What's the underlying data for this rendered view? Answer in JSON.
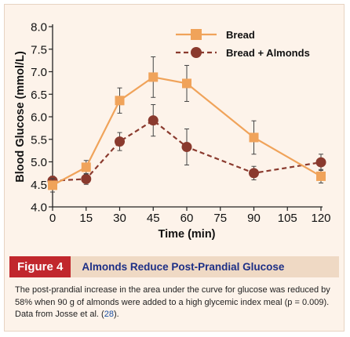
{
  "chart_data": {
    "type": "line",
    "xlabel": "Time (min)",
    "ylabel": "Blood Glucose (mmol/L)",
    "xlim": [
      0,
      120
    ],
    "ylim": [
      4.0,
      8.0
    ],
    "x": [
      0,
      15,
      30,
      45,
      60,
      90,
      120
    ],
    "xticks": [
      0,
      15,
      30,
      45,
      60,
      75,
      90,
      105,
      120
    ],
    "xtick_labels": [
      "0",
      "15",
      "30",
      "45",
      "60",
      "75",
      "90",
      "105",
      "120"
    ],
    "yticks": [
      4.0,
      4.5,
      5.0,
      5.5,
      6.0,
      6.5,
      7.0,
      7.5,
      8.0
    ],
    "ytick_labels": [
      "4.0",
      "4.5",
      "5.0",
      "5.5",
      "6.0",
      "6.5",
      "7.0",
      "7.5",
      "8.0"
    ],
    "grid": false,
    "legend_position": "top-right",
    "series": [
      {
        "name": "Bread",
        "color": "#f0a35a",
        "marker": "square",
        "line_style": "solid",
        "values": [
          4.48,
          4.88,
          6.36,
          6.88,
          6.74,
          5.54,
          4.68
        ],
        "error": [
          0.15,
          0.15,
          0.28,
          0.45,
          0.4,
          0.37,
          0.15
        ]
      },
      {
        "name": "Bread + Almonds",
        "color": "#8a3a2e",
        "marker": "circle",
        "line_style": "dashed",
        "values": [
          4.58,
          4.62,
          5.45,
          5.92,
          5.33,
          4.75,
          4.99
        ],
        "error": [
          0.1,
          0.12,
          0.2,
          0.35,
          0.4,
          0.15,
          0.18
        ]
      }
    ]
  },
  "figure": {
    "label": "Figure 4",
    "title": "Almonds Reduce Post-Prandial Glucose",
    "caption_text": "The post-prandial increase in the area under the curve for glucose was reduced by 58% when 90 g of almonds were added to a high glycemic index meal (p = 0.009). Data from Josse et al. (",
    "caption_ref": "28",
    "caption_end": ")."
  }
}
